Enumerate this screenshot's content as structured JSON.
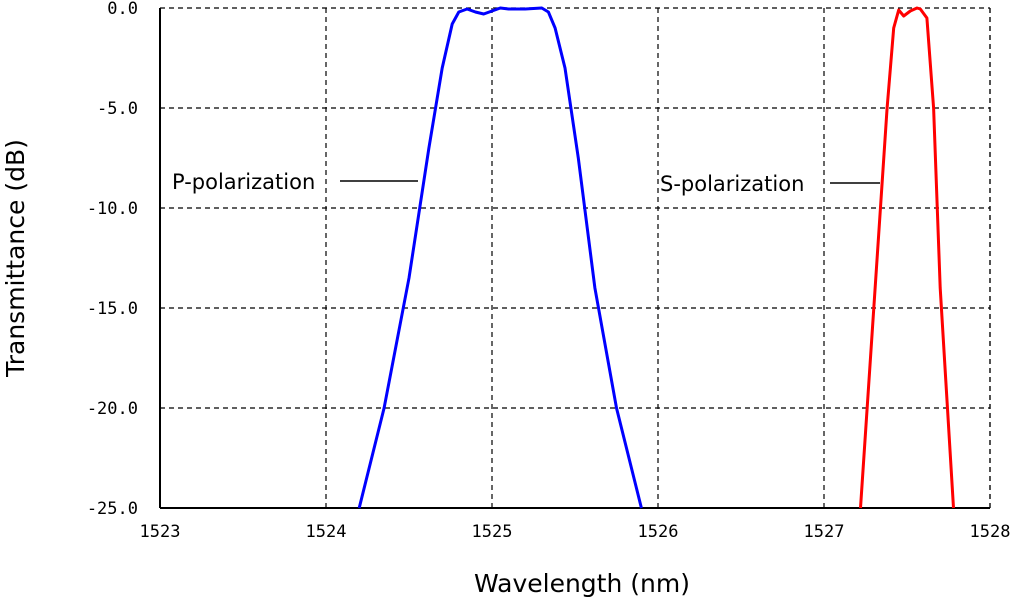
{
  "chart_data": {
    "type": "line",
    "xlabel": "Wavelength (nm)",
    "ylabel": "Transmittance (dB)",
    "xlim": [
      1523,
      1528
    ],
    "ylim": [
      -25,
      0
    ],
    "xticks": [
      1523,
      1524,
      1525,
      1526,
      1527,
      1528
    ],
    "xtick_labels": [
      "1523",
      "1524",
      "1525",
      "1526",
      "1527",
      "1528"
    ],
    "yticks": [
      0,
      -5,
      -10,
      -15,
      -20,
      -25
    ],
    "ytick_labels": [
      "0.0",
      "-5.0",
      "-10.0",
      "-15.0",
      "-20.0",
      "-25.0"
    ],
    "grid": true,
    "series": [
      {
        "name": "P-polarization",
        "color": "#0000ff",
        "x": [
          1524.2,
          1524.35,
          1524.5,
          1524.62,
          1524.7,
          1524.76,
          1524.8,
          1524.85,
          1524.9,
          1524.95,
          1525.0,
          1525.05,
          1525.1,
          1525.2,
          1525.3,
          1525.34,
          1525.38,
          1525.44,
          1525.52,
          1525.62,
          1525.75,
          1525.9
        ],
        "y": [
          -25,
          -20,
          -13.5,
          -7,
          -3,
          -0.8,
          -0.2,
          -0.05,
          -0.2,
          -0.3,
          -0.15,
          0,
          -0.05,
          -0.05,
          0,
          -0.2,
          -1,
          -3,
          -7.5,
          -14,
          -20,
          -25
        ]
      },
      {
        "name": "S-polarization",
        "color": "#ff0000",
        "x": [
          1527.22,
          1527.3,
          1527.38,
          1527.42,
          1527.45,
          1527.48,
          1527.52,
          1527.56,
          1527.58,
          1527.62,
          1527.66,
          1527.7,
          1527.78
        ],
        "y": [
          -25,
          -15,
          -5,
          -1,
          -0.1,
          -0.4,
          -0.15,
          0,
          -0.05,
          -0.5,
          -5,
          -14,
          -25
        ]
      }
    ],
    "annotations": [
      {
        "text": "P-polarization",
        "x": 1524.55,
        "y": -8.6
      },
      {
        "text": "S-polarization",
        "x": 1527.35,
        "y": -8.7
      }
    ]
  }
}
